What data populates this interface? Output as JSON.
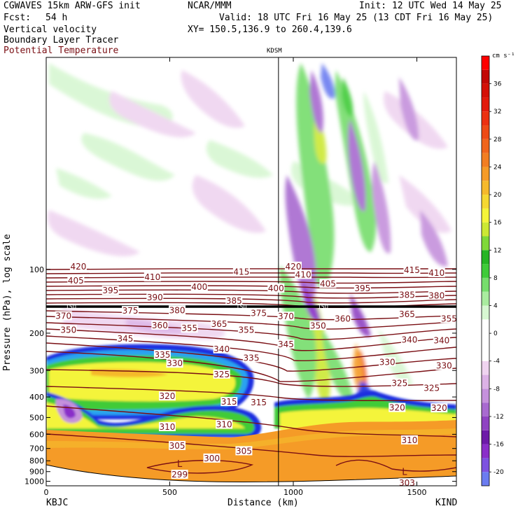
{
  "header": {
    "model": "CGWAVES 15km ARW-GFS init",
    "org": "NCAR/MMM",
    "init": "Init: 12 UTC Wed 14 May 25",
    "fcst_label": "Fcst:",
    "fcst_value": "54 h",
    "valid": "Valid: 18 UTC Fri 16 May 25 (13 CDT Fri 16 May 25)",
    "field1": "Vertical velocity",
    "field2": "Boundary Layer Tracer",
    "field3": "Potential Temperature",
    "xy": "XY= 150.5,136.9 to 260.4,139.6"
  },
  "colors": {
    "theta_contour": "#7a0f14",
    "bl_tracer": "#000000"
  },
  "chart_data": {
    "type": "heatmap",
    "title": "",
    "xlabel": "Distance (km)",
    "ylabel": "Pressure (hPa), log scale",
    "xlim": [
      0,
      1660
    ],
    "ylim_hpa": [
      1050,
      10
    ],
    "y_scale": "log",
    "xticks": [
      0,
      500,
      1000,
      1500
    ],
    "yticks": [
      100,
      200,
      300,
      400,
      500,
      600,
      700,
      800,
      900,
      1000
    ],
    "endpoint_left": "KBJC",
    "endpoint_right": "KIND",
    "station_marker": {
      "label": "KDSM",
      "x_km": 940
    },
    "colorbar": {
      "units": "cm s⁻¹",
      "levels": [
        -22,
        -20,
        -18,
        -16,
        -14,
        -12,
        -10,
        -8,
        -6,
        -4,
        -2,
        0,
        2,
        4,
        6,
        8,
        10,
        12,
        14,
        16,
        18,
        20,
        22,
        24,
        26,
        28,
        30,
        32,
        34,
        36,
        38,
        40
      ],
      "tick_labels": [
        "-20",
        "-16",
        "-12",
        "-8",
        "-4",
        "0",
        "4",
        "8",
        "12",
        "16",
        "20",
        "24",
        "28",
        "32",
        "36"
      ],
      "colors": [
        "#6b7cf0",
        "#7d52e0",
        "#8a2fc9",
        "#6d1ba8",
        "#8f43c2",
        "#a86ad0",
        "#c591dc",
        "#dcb2e6",
        "#efd4f0",
        "#ffffff",
        "#ffffff",
        "#ffffff",
        "#d7f7d2",
        "#a9ec9f",
        "#76dd6c",
        "#3fcb39",
        "#26b524",
        "#7fd838",
        "#cce834",
        "#f4f43a",
        "#f5d832",
        "#f5b92c",
        "#f59b27",
        "#f27e22",
        "#f0651c",
        "#ee4a16",
        "#ec3011",
        "#e21a0c",
        "#d41008",
        "#c20806",
        "#ff0000"
      ]
    },
    "theta_labels": [
      {
        "v": "420",
        "x": 130,
        "p": 97
      },
      {
        "v": "420",
        "x": 1000,
        "p": 97
      },
      {
        "v": "415",
        "x": 790,
        "p": 103
      },
      {
        "v": "415",
        "x": 1480,
        "p": 101
      },
      {
        "v": "410",
        "x": 430,
        "p": 109
      },
      {
        "v": "410",
        "x": 1040,
        "p": 106
      },
      {
        "v": "410",
        "x": 1580,
        "p": 104
      },
      {
        "v": "405",
        "x": 120,
        "p": 113
      },
      {
        "v": "405",
        "x": 1140,
        "p": 117
      },
      {
        "v": "400",
        "x": 620,
        "p": 121
      },
      {
        "v": "400",
        "x": 930,
        "p": 123
      },
      {
        "v": "395",
        "x": 260,
        "p": 126
      },
      {
        "v": "395",
        "x": 1280,
        "p": 123
      },
      {
        "v": "390",
        "x": 440,
        "p": 136
      },
      {
        "v": "385",
        "x": 760,
        "p": 141
      },
      {
        "v": "385",
        "x": 1460,
        "p": 132
      },
      {
        "v": "380",
        "x": 1580,
        "p": 133
      },
      {
        "v": "380",
        "x": 530,
        "p": 156
      },
      {
        "v": "375",
        "x": 340,
        "p": 157
      },
      {
        "v": "375",
        "x": 860,
        "p": 161
      },
      {
        "v": "370",
        "x": 70,
        "p": 166
      },
      {
        "v": "370",
        "x": 970,
        "p": 167
      },
      {
        "v": "365",
        "x": 700,
        "p": 181
      },
      {
        "v": "365",
        "x": 1460,
        "p": 163
      },
      {
        "v": "360",
        "x": 460,
        "p": 184
      },
      {
        "v": "360",
        "x": 1200,
        "p": 171
      },
      {
        "v": "355",
        "x": 580,
        "p": 190
      },
      {
        "v": "355",
        "x": 810,
        "p": 193
      },
      {
        "v": "355",
        "x": 1630,
        "p": 171
      },
      {
        "v": "350",
        "x": 90,
        "p": 193
      },
      {
        "v": "350",
        "x": 1100,
        "p": 185
      },
      {
        "v": "345",
        "x": 320,
        "p": 213
      },
      {
        "v": "345",
        "x": 970,
        "p": 226
      },
      {
        "v": "340",
        "x": 710,
        "p": 238
      },
      {
        "v": "340",
        "x": 1470,
        "p": 215
      },
      {
        "v": "340",
        "x": 1600,
        "p": 217
      },
      {
        "v": "335",
        "x": 470,
        "p": 253
      },
      {
        "v": "335",
        "x": 830,
        "p": 262
      },
      {
        "v": "330",
        "x": 520,
        "p": 278
      },
      {
        "v": "330",
        "x": 1380,
        "p": 274
      },
      {
        "v": "330",
        "x": 1610,
        "p": 285
      },
      {
        "v": "325",
        "x": 710,
        "p": 313
      },
      {
        "v": "325",
        "x": 1430,
        "p": 345
      },
      {
        "v": "325",
        "x": 1560,
        "p": 363
      },
      {
        "v": "320",
        "x": 490,
        "p": 397
      },
      {
        "v": "320",
        "x": 1420,
        "p": 450
      },
      {
        "v": "320",
        "x": 1590,
        "p": 452
      },
      {
        "v": "315",
        "x": 740,
        "p": 422
      },
      {
        "v": "315",
        "x": 860,
        "p": 425
      },
      {
        "v": "310",
        "x": 490,
        "p": 554
      },
      {
        "v": "310",
        "x": 720,
        "p": 540
      },
      {
        "v": "310",
        "x": 1470,
        "p": 640
      },
      {
        "v": "305",
        "x": 530,
        "p": 680
      },
      {
        "v": "305",
        "x": 800,
        "p": 720
      },
      {
        "v": "300",
        "x": 670,
        "p": 780
      },
      {
        "v": "299",
        "x": 540,
        "p": 930
      },
      {
        "v": "303",
        "x": 1460,
        "p": 1020
      }
    ],
    "low_markers": [
      {
        "label": "L",
        "x": 540,
        "p": 830
      },
      {
        "label": "L",
        "x": 1450,
        "p": 905
      }
    ],
    "tropopause_marks": [
      {
        "label": "150",
        "x": 100,
        "p": 150
      },
      {
        "label": "150",
        "x": 790,
        "p": 150
      },
      {
        "label": "150",
        "x": 1120,
        "p": 150
      }
    ]
  }
}
